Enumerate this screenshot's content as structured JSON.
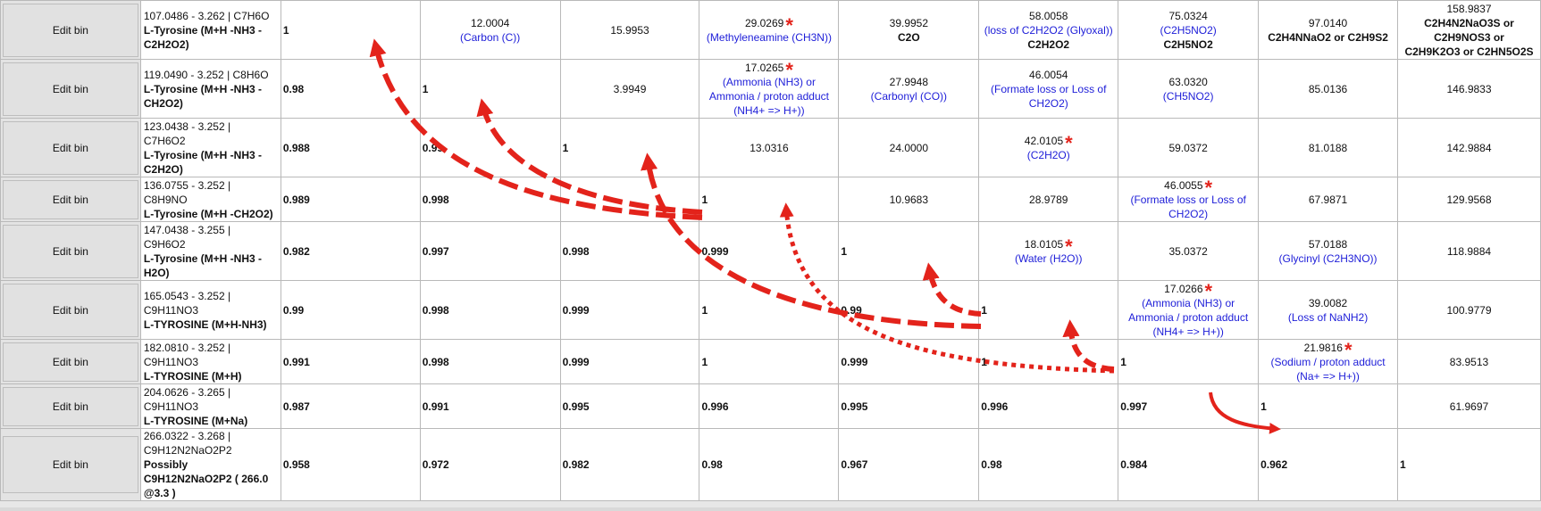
{
  "table": {
    "edit_label": "Edit bin",
    "rows": [
      {
        "label": [
          "107.0486 - 3.262 | C7H6O",
          "L-Tyrosine (M+H -NH3 -C2H2O2)"
        ],
        "cells": [
          {
            "type": "corr",
            "v": "1"
          },
          {
            "type": "mass",
            "v": "12.0004",
            "lines": [
              "(Carbon (C))"
            ],
            "lines_blue": true
          },
          {
            "type": "mass",
            "v": "15.9953"
          },
          {
            "type": "mass",
            "v": "29.0269",
            "star": true,
            "lines": [
              "(Methyleneamine (CH3N))"
            ],
            "lines_blue": true
          },
          {
            "type": "mass",
            "v": "39.9952",
            "lines": [
              "C2O"
            ],
            "lines_bold": true
          },
          {
            "type": "mass",
            "v": "58.0058",
            "lines": [
              "(loss of C2H2O2 (Glyoxal))"
            ],
            "lines_blue": true,
            "extra": "C2H2O2"
          },
          {
            "type": "mass",
            "v": "75.0324",
            "lines": [
              "(C2H5NO2)"
            ],
            "lines_blue": true,
            "extra": "C2H5NO2"
          },
          {
            "type": "mass",
            "v": "97.0140",
            "lines": [
              "C2H4NNaO2 or C2H9S2"
            ],
            "lines_bold": true
          },
          {
            "type": "mass",
            "v": "158.9837",
            "lines": [
              "C2H4N2NaO3S or",
              "C2H9NOS3 or",
              "C2H9K2O3 or C2HN5O2S"
            ],
            "lines_bold": true
          }
        ]
      },
      {
        "label": [
          "119.0490 - 3.252 | C8H6O",
          "L-Tyrosine (M+H -NH3 -CH2O2)"
        ],
        "cells": [
          {
            "type": "corr",
            "v": "0.98"
          },
          {
            "type": "corr",
            "v": "1"
          },
          {
            "type": "mass",
            "v": "3.9949"
          },
          {
            "type": "mass",
            "v": "17.0265",
            "star": true,
            "lines": [
              "(Ammonia (NH3) or",
              "Ammonia / proton adduct",
              "(NH4+ => H+))"
            ],
            "lines_blue": true
          },
          {
            "type": "mass",
            "v": "27.9948",
            "lines": [
              "(Carbonyl (CO))"
            ],
            "lines_blue": true
          },
          {
            "type": "mass",
            "v": "46.0054",
            "lines": [
              "(Formate loss or Loss of",
              "CH2O2)"
            ],
            "lines_blue": true
          },
          {
            "type": "mass",
            "v": "63.0320",
            "lines": [
              "(CH5NO2)"
            ],
            "lines_blue": true
          },
          {
            "type": "mass",
            "v": "85.0136"
          },
          {
            "type": "mass",
            "v": "146.9833"
          }
        ]
      },
      {
        "label": [
          "123.0438 - 3.252 |",
          "C7H6O2",
          "L-Tyrosine (M+H -NH3 -C2H2O)"
        ],
        "cells": [
          {
            "type": "corr",
            "v": "0.988"
          },
          {
            "type": "corr",
            "v": "0.99"
          },
          {
            "type": "corr",
            "v": "1"
          },
          {
            "type": "mass",
            "v": "13.0316"
          },
          {
            "type": "mass",
            "v": "24.0000"
          },
          {
            "type": "mass",
            "v": "42.0105",
            "star": true,
            "lines": [
              "(C2H2O)"
            ],
            "lines_blue": true
          },
          {
            "type": "mass",
            "v": "59.0372"
          },
          {
            "type": "mass",
            "v": "81.0188"
          },
          {
            "type": "mass",
            "v": "142.9884"
          }
        ]
      },
      {
        "label": [
          "136.0755 - 3.252 |",
          "C8H9NO",
          "L-Tyrosine (M+H -CH2O2)"
        ],
        "cells": [
          {
            "type": "corr",
            "v": "0.989"
          },
          {
            "type": "corr",
            "v": "0.998"
          },
          {
            "type": "corr",
            "v": ""
          },
          {
            "type": "corr",
            "v": "1"
          },
          {
            "type": "mass",
            "v": "10.9683"
          },
          {
            "type": "mass",
            "v": "28.9789"
          },
          {
            "type": "mass",
            "v": "46.0055",
            "star": true,
            "lines": [
              "(Formate loss or Loss of",
              "CH2O2)"
            ],
            "lines_blue": true
          },
          {
            "type": "mass",
            "v": "67.9871"
          },
          {
            "type": "mass",
            "v": "129.9568"
          }
        ]
      },
      {
        "label": [
          "147.0438 - 3.255 |",
          "C9H6O2",
          "L-Tyrosine (M+H -NH3 -H2O)"
        ],
        "cells": [
          {
            "type": "corr",
            "v": "0.982"
          },
          {
            "type": "corr",
            "v": "0.997"
          },
          {
            "type": "corr",
            "v": "0.998"
          },
          {
            "type": "corr",
            "v": "0.999"
          },
          {
            "type": "corr",
            "v": "1"
          },
          {
            "type": "mass",
            "v": "18.0105",
            "star": true,
            "lines": [
              "(Water (H2O))"
            ],
            "lines_blue": true
          },
          {
            "type": "mass",
            "v": "35.0372"
          },
          {
            "type": "mass",
            "v": "57.0188",
            "lines": [
              "(Glycinyl (C2H3NO))"
            ],
            "lines_blue": true
          },
          {
            "type": "mass",
            "v": "118.9884"
          }
        ]
      },
      {
        "label": [
          "165.0543 - 3.252 |",
          "C9H11NO3",
          "L-TYROSINE (M+H-NH3)"
        ],
        "cells": [
          {
            "type": "corr",
            "v": "0.99"
          },
          {
            "type": "corr",
            "v": "0.998"
          },
          {
            "type": "corr",
            "v": "0.999"
          },
          {
            "type": "corr",
            "v": "1"
          },
          {
            "type": "corr",
            "v": "0.99"
          },
          {
            "type": "corr",
            "v": "1"
          },
          {
            "type": "mass",
            "v": "17.0266",
            "star": true,
            "lines": [
              "(Ammonia (NH3) or",
              "Ammonia / proton adduct",
              "(NH4+ => H+))"
            ],
            "lines_blue": true
          },
          {
            "type": "mass",
            "v": "39.0082",
            "lines": [
              "(Loss of NaNH2)"
            ],
            "lines_blue": true
          },
          {
            "type": "mass",
            "v": "100.9779"
          }
        ]
      },
      {
        "label": [
          "182.0810 - 3.252 |",
          "C9H11NO3",
          "L-TYROSINE (M+H)"
        ],
        "cells": [
          {
            "type": "corr",
            "v": "0.991"
          },
          {
            "type": "corr",
            "v": "0.998"
          },
          {
            "type": "corr",
            "v": "0.999"
          },
          {
            "type": "corr",
            "v": "1"
          },
          {
            "type": "corr",
            "v": "0.999"
          },
          {
            "type": "corr",
            "v": "1"
          },
          {
            "type": "corr",
            "v": "1"
          },
          {
            "type": "mass",
            "v": "21.9816",
            "star": true,
            "lines": [
              "(Sodium / proton adduct",
              "(Na+ => H+))"
            ],
            "lines_blue": true
          },
          {
            "type": "mass",
            "v": "83.9513"
          }
        ]
      },
      {
        "label": [
          "204.0626 - 3.265 |",
          "C9H11NO3",
          "L-TYROSINE (M+Na)"
        ],
        "cells": [
          {
            "type": "corr",
            "v": "0.987"
          },
          {
            "type": "corr",
            "v": "0.991"
          },
          {
            "type": "corr",
            "v": "0.995"
          },
          {
            "type": "corr",
            "v": "0.996"
          },
          {
            "type": "corr",
            "v": "0.995"
          },
          {
            "type": "corr",
            "v": "0.996"
          },
          {
            "type": "corr",
            "v": "0.997"
          },
          {
            "type": "corr",
            "v": "1"
          },
          {
            "type": "mass",
            "v": "61.9697"
          }
        ]
      },
      {
        "label": [
          "266.0322 - 3.268 |",
          "C9H12N2NaO2P2",
          "Possibly C9H12N2NaO2P2 ( 266.0 @3.3 )"
        ],
        "cells": [
          {
            "type": "corr",
            "v": "0.958"
          },
          {
            "type": "corr",
            "v": "0.972"
          },
          {
            "type": "corr",
            "v": "0.982"
          },
          {
            "type": "corr",
            "v": "0.98"
          },
          {
            "type": "corr",
            "v": "0.967"
          },
          {
            "type": "corr",
            "v": "0.98"
          },
          {
            "type": "corr",
            "v": "0.984"
          },
          {
            "type": "corr",
            "v": "0.962"
          },
          {
            "type": "corr",
            "v": "1"
          }
        ]
      }
    ]
  },
  "arrows": {
    "color": "#e3231b"
  }
}
